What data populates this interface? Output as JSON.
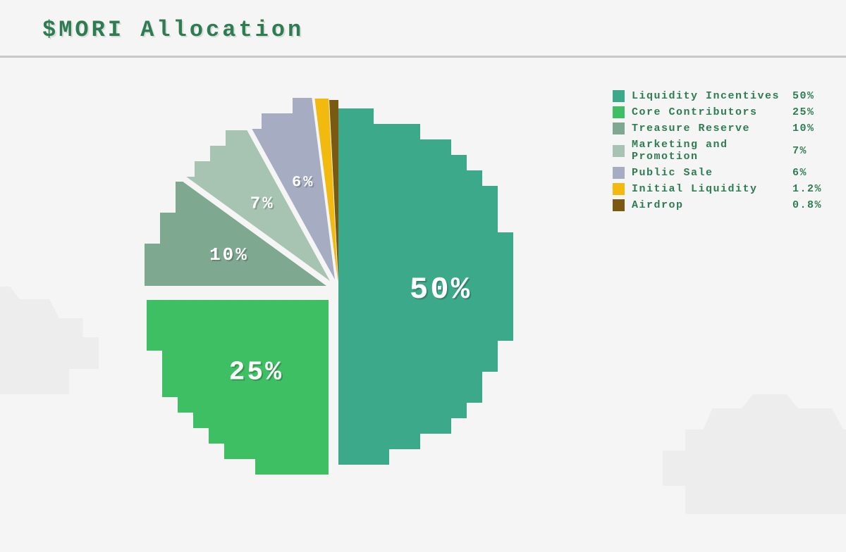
{
  "title": "$MORI Allocation",
  "background_color": "#f5f5f5",
  "cloud_color": "#ededed",
  "divider_color": "#c8c8c8",
  "text_color": "#2e7d52",
  "title_fontsize": 32,
  "legend_fontsize": 15,
  "chart": {
    "type": "pie",
    "start_angle_deg": -90,
    "label_color": "#ffffff",
    "slices": [
      {
        "label": "Liquidity Incentives",
        "value": 50,
        "display": "50%",
        "color": "#3ba98a",
        "explode": 0,
        "show_label": true,
        "label_fontsize": 44
      },
      {
        "label": "Core Contributors",
        "value": 25,
        "display": "25%",
        "color": "#3fbf63",
        "explode": 20,
        "show_label": true,
        "label_fontsize": 38
      },
      {
        "label": "Treasure Reserve",
        "value": 10,
        "display": "10%",
        "color": "#7ea88f",
        "explode": 18,
        "show_label": true,
        "label_fontsize": 26
      },
      {
        "label": "Marketing and Promotion",
        "value": 7,
        "display": "7%",
        "color": "#a7c3b2",
        "explode": 18,
        "show_label": true,
        "label_fontsize": 24
      },
      {
        "label": "Public Sale",
        "value": 6,
        "display": "6%",
        "color": "#a6adc2",
        "explode": 16,
        "show_label": true,
        "label_fontsize": 22
      },
      {
        "label": "Initial Liquidity",
        "value": 1.2,
        "display": "1.2%",
        "color": "#f2b90e",
        "explode": 14,
        "show_label": false,
        "label_fontsize": 14
      },
      {
        "label": "Airdrop",
        "value": 0.8,
        "display": "0.8%",
        "color": "#7a5a12",
        "explode": 12,
        "show_label": false,
        "label_fontsize": 14
      }
    ]
  }
}
